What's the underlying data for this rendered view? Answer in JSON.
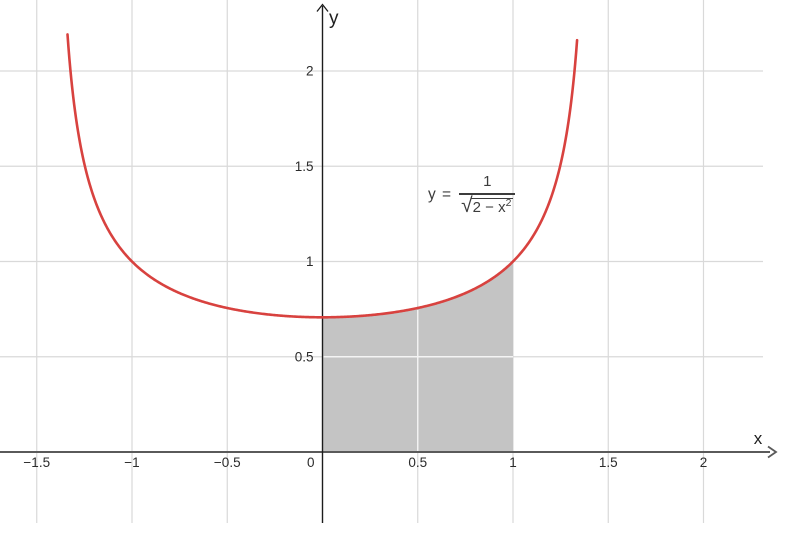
{
  "chart_data": {
    "type": "line",
    "title": "",
    "function": {
      "expression": "y = 1 / sqrt(2 - x^2)",
      "color": "#d8423f",
      "domain": [
        -1.3386,
        1.3386
      ],
      "key_points": [
        {
          "x": -1,
          "y": 1
        },
        {
          "x": -0.5,
          "y": 0.756
        },
        {
          "x": 0,
          "y": 0.707
        },
        {
          "x": 0.5,
          "y": 0.756
        },
        {
          "x": 1,
          "y": 1
        }
      ]
    },
    "label": {
      "lhs": "y =",
      "numerator": "1",
      "radical": "√",
      "radicand": "2 − x",
      "radicand_exponent": "2"
    },
    "shaded_region": {
      "from_x": 0,
      "to_x": 1,
      "fill_color": "#c4c4c4",
      "description": "area under the curve between x = 0 and x = 1, bounded below by the x-axis"
    },
    "axes": {
      "x_label": "x",
      "y_label": "y",
      "x_ticks": [
        {
          "value": -1.5,
          "label": "−1.5"
        },
        {
          "value": -1,
          "label": "−1"
        },
        {
          "value": -0.5,
          "label": "−0.5"
        },
        {
          "value": 0,
          "label": "0"
        },
        {
          "value": 0.5,
          "label": "0.5"
        },
        {
          "value": 1,
          "label": "1"
        },
        {
          "value": 1.5,
          "label": "1.5"
        },
        {
          "value": 2,
          "label": "2"
        }
      ],
      "y_ticks": [
        {
          "value": 0.5,
          "label": "0.5"
        },
        {
          "value": 1,
          "label": "1"
        },
        {
          "value": 1.5,
          "label": "1.5"
        },
        {
          "value": 2,
          "label": "2"
        }
      ],
      "x_visible_range": [
        -1.69,
        2.43
      ],
      "y_visible_range": [
        -0.37,
        2.37
      ]
    },
    "grid": {
      "enabled": true,
      "spacing": 0.5,
      "color": "#d9d9d9",
      "color_over_fill": "#f4f4f4"
    },
    "colors": {
      "curve": "#d8423f",
      "fill": "#c4c4c4",
      "x_axis": "#5a5a5a",
      "y_axis": "#1c1c1c",
      "tick_text": "#2b2b2b",
      "background": "#ffffff"
    }
  }
}
